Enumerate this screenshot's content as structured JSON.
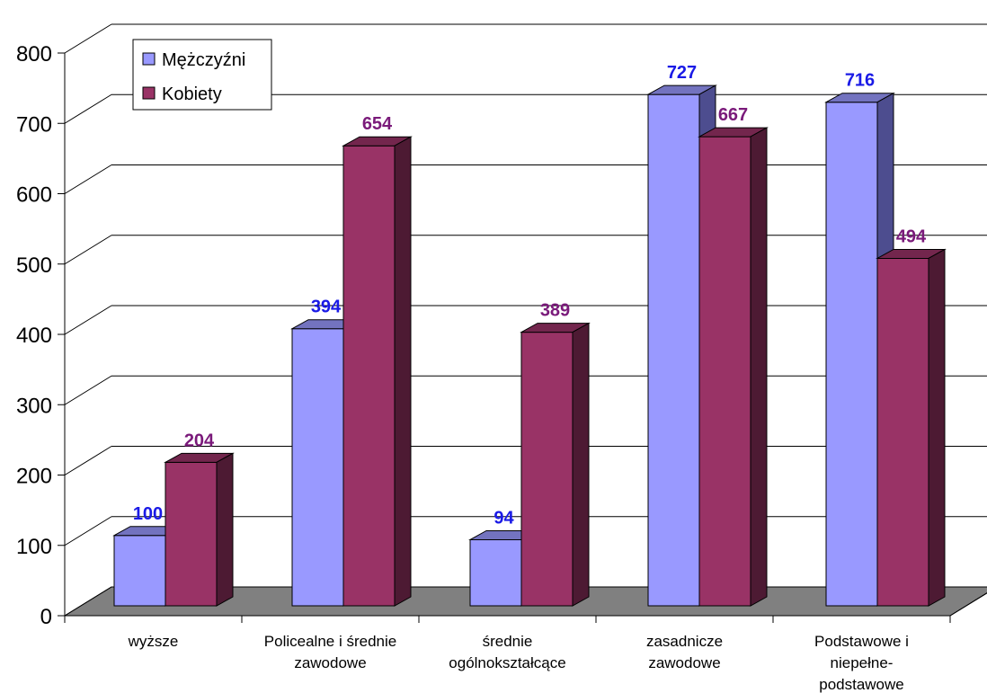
{
  "chart_data": {
    "type": "bar",
    "categories": [
      [
        "wyższe"
      ],
      [
        "Policealne i średnie",
        "zawodowe"
      ],
      [
        "średnie",
        "ogólnokształcące"
      ],
      [
        "zasadnicze",
        "zawodowe"
      ],
      [
        "Podstawowe i",
        "niepełne-",
        "podstawowe"
      ]
    ],
    "series": [
      {
        "name": "Mężczyźni",
        "values": [
          100,
          394,
          94,
          727,
          716
        ],
        "color": "#9999FF",
        "side_color": "#4D4D8F",
        "top_color": "#7373BF",
        "label_color": "#1A1AE6"
      },
      {
        "name": "Kobiety",
        "values": [
          204,
          654,
          389,
          667,
          494
        ],
        "color": "#993366",
        "side_color": "#4D1A33",
        "top_color": "#73264D",
        "label_color": "#7A1A7A"
      }
    ],
    "ylim": [
      0,
      800
    ],
    "yticks": [
      "0",
      "100",
      "200",
      "300",
      "400",
      "500",
      "600",
      "700",
      "800"
    ],
    "grid": true,
    "legend_position": "top-left",
    "floor_color": "#808080",
    "style": "3d-column"
  }
}
